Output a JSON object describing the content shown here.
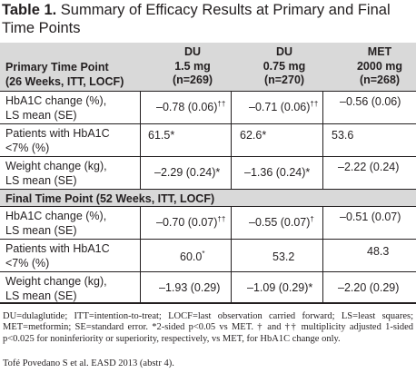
{
  "title": {
    "prefix": "Table 1.",
    "text": " Summary of Efficacy Results at Primary and Final Time Points"
  },
  "header": {
    "label_line1": "Primary Time Point",
    "label_line2": "(26 Weeks, ITT, LOCF)",
    "columns": [
      {
        "line1": "DU",
        "line2": "1.5 mg",
        "line3": "(n=269)"
      },
      {
        "line1": "DU",
        "line2": "0.75 mg",
        "line3": "(n=270)"
      },
      {
        "line1": "MET",
        "line2": "2000 mg",
        "line3": "(n=268)"
      }
    ]
  },
  "primary_rows": [
    {
      "label_line1": "HbA1C change (%),",
      "label_line2": "LS mean (SE)",
      "v1": "–0.78 (0.06)",
      "s1": "††",
      "v2": "–0.71 (0.06)",
      "s2": "††",
      "v3": "–0.56 (0.06)",
      "s3": ""
    },
    {
      "label_line1": "Patients with HbA1C",
      "label_line2": "<7% (%)",
      "v1": "61.5*",
      "s1": "",
      "v2": "62.6*",
      "s2": "",
      "v3": "53.6",
      "s3": ""
    },
    {
      "label_line1": "Weight change (kg),",
      "label_line2": "LS mean (SE)",
      "v1": "–2.29 (0.24)*",
      "s1": "",
      "v2": "–1.36 (0.24)*",
      "s2": "",
      "v3": "–2.22 (0.24)",
      "s3": ""
    }
  ],
  "section_final": "Final Time Point (52 Weeks, ITT, LOCF)",
  "final_rows": [
    {
      "label_line1": "HbA1C change (%),",
      "label_line2": "LS mean (SE)",
      "v1": "–0.70 (0.07)",
      "s1": "††",
      "v2": "–0.55 (0.07)",
      "s2": "†",
      "v3": "–0.51 (0.07)",
      "s3": ""
    },
    {
      "label_line1": "Patients with HbA1C",
      "label_line2": "<7% (%)",
      "v1": "60.0",
      "s1": "*",
      "v2": "53.2",
      "s2": "",
      "v3": "48.3",
      "s3": ""
    },
    {
      "label_line1": "Weight change (kg),",
      "label_line2": "LS mean (SE)",
      "v1": "–1.93 (0.29)",
      "s1": "",
      "v2": "–1.09 (0.29)*",
      "s2": "",
      "v3": "–2.20 (0.29)",
      "s3": ""
    }
  ],
  "footnote": "DU=dulaglutide; ITT=intention-to-treat; LOCF=last observation carried forward; LS=least squares; MET=metformin; SE=standard error. *2-sided p<0.05 vs MET. † and †† multiplicity adjusted 1-sided p<0.025 for noninferiority or superiority, respectively, vs MET, for HbA1C change only.",
  "source": "Tofé Povedano S et al. EASD 2013 (abstr 4)."
}
